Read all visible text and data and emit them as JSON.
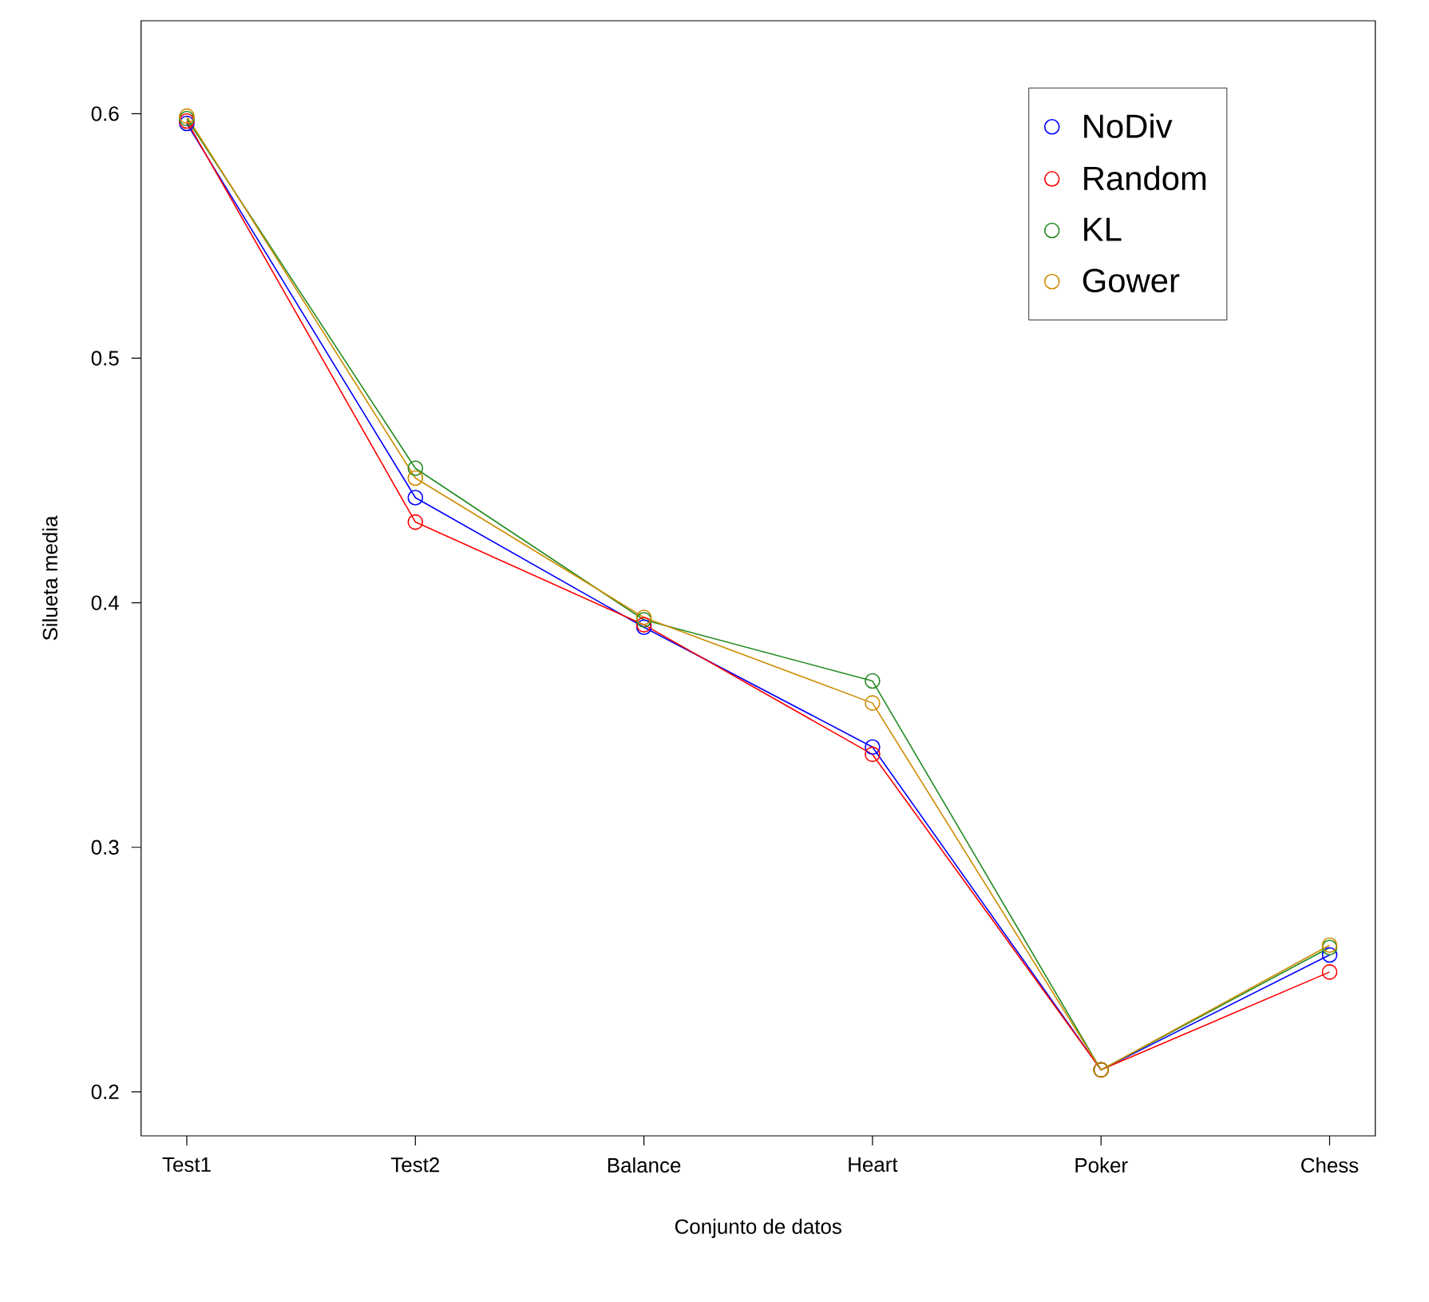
{
  "chart_data": {
    "type": "line",
    "xlabel": "Conjunto de datos",
    "ylabel": "Silueta media",
    "categories": [
      "Test1",
      "Test2",
      "Balance",
      "Heart",
      "Poker",
      "Chess"
    ],
    "series": [
      {
        "name": "NoDiv",
        "color": "#0000ff",
        "values": [
          0.596,
          0.443,
          0.39,
          0.341,
          0.209,
          0.256
        ]
      },
      {
        "name": "Random",
        "color": "#ff0000",
        "values": [
          0.597,
          0.433,
          0.391,
          0.338,
          0.209,
          0.249
        ]
      },
      {
        "name": "KL",
        "color": "#228b22",
        "values": [
          0.598,
          0.455,
          0.393,
          0.368,
          0.209,
          0.259
        ]
      },
      {
        "name": "Gower",
        "color": "#cd8c00",
        "values": [
          0.599,
          0.451,
          0.394,
          0.359,
          0.209,
          0.26
        ]
      }
    ],
    "ylim": [
      0.182,
      0.638
    ],
    "yticks": [
      0.2,
      0.3,
      0.4,
      0.5,
      0.6
    ],
    "legend": "top right",
    "marker": "circle",
    "line_style": "solid",
    "grid": false
  }
}
